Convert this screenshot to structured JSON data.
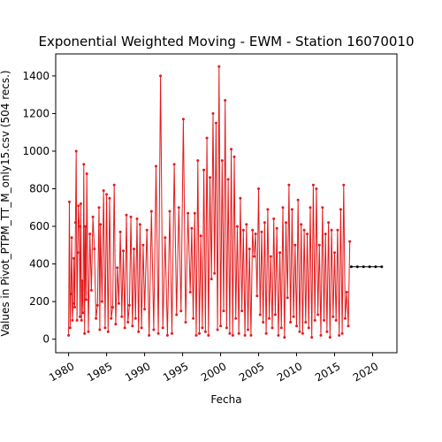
{
  "chart_data": {
    "type": "line",
    "title": "Exponential Weighted Moving - EWM - Station 16070010",
    "xlabel": "Fecha",
    "ylabel": "Values in Pivot_PTPM_TT_M_only15.csv (504 recs.)",
    "xlim": [
      1978.3,
      2023.2
    ],
    "ylim": [
      -72,
      1517
    ],
    "x_ticks": [
      1980,
      1985,
      1990,
      1995,
      2000,
      2005,
      2010,
      2015,
      2020
    ],
    "x_tick_labels": [
      "1980",
      "1985",
      "1990",
      "1995",
      "2000",
      "2005",
      "2010",
      "2015",
      "2020"
    ],
    "y_ticks": [
      0,
      200,
      400,
      600,
      800,
      1000,
      1200,
      1400
    ],
    "y_tick_labels": [
      "0",
      "200",
      "400",
      "600",
      "800",
      "1000",
      "1200",
      "1400"
    ],
    "grid": false,
    "colors": {
      "ewm": "#e31a1c",
      "tail": "#000000"
    },
    "series": [
      {
        "color": "#e31a1c",
        "x": [
          1980.0,
          1980.1,
          1980.2,
          1980.3,
          1980.4,
          1980.5,
          1980.6,
          1980.7,
          1980.8,
          1980.9,
          1981.0,
          1981.1,
          1981.2,
          1981.3,
          1981.4,
          1981.5,
          1981.6,
          1981.7,
          1981.8,
          1981.9,
          1982.0,
          1982.1,
          1982.2,
          1982.3,
          1982.4,
          1982.6,
          1982.8,
          1983.0,
          1983.2,
          1983.4,
          1983.6,
          1983.8,
          1984.0,
          1984.1,
          1984.2,
          1984.4,
          1984.6,
          1984.8,
          1985.0,
          1985.2,
          1985.4,
          1985.6,
          1985.8,
          1986.0,
          1986.2,
          1986.4,
          1986.6,
          1986.8,
          1987.0,
          1987.2,
          1987.4,
          1987.6,
          1987.8,
          1988.0,
          1988.2,
          1988.4,
          1988.6,
          1988.8,
          1989.0,
          1989.2,
          1989.4,
          1989.6,
          1989.8,
          1990.0,
          1990.3,
          1990.6,
          1990.9,
          1991.2,
          1991.5,
          1991.8,
          1992.1,
          1992.4,
          1992.7,
          1993.0,
          1993.3,
          1993.6,
          1993.9,
          1994.2,
          1994.5,
          1994.8,
          1995.1,
          1995.4,
          1995.7,
          1996.0,
          1996.2,
          1996.4,
          1996.6,
          1996.8,
          1997.0,
          1997.2,
          1997.4,
          1997.6,
          1997.8,
          1998.0,
          1998.2,
          1998.4,
          1998.6,
          1998.8,
          1999.0,
          1999.2,
          1999.4,
          1999.6,
          1999.8,
          2000.0,
          2000.2,
          2000.4,
          2000.6,
          2000.8,
          2001.0,
          2001.2,
          2001.4,
          2001.6,
          2001.8,
          2002.0,
          2002.2,
          2002.4,
          2002.6,
          2002.8,
          2003.0,
          2003.2,
          2003.4,
          2003.6,
          2003.8,
          2004.0,
          2004.2,
          2004.4,
          2004.6,
          2004.8,
          2005.0,
          2005.2,
          2005.4,
          2005.6,
          2005.8,
          2006.0,
          2006.2,
          2006.4,
          2006.6,
          2006.8,
          2007.0,
          2007.2,
          2007.4,
          2007.6,
          2007.8,
          2008.0,
          2008.2,
          2008.4,
          2008.6,
          2008.8,
          2009.0,
          2009.2,
          2009.4,
          2009.6,
          2009.8,
          2010.0,
          2010.2,
          2010.4,
          2010.6,
          2010.8,
          2011.0,
          2011.2,
          2011.4,
          2011.6,
          2011.8,
          2012.0,
          2012.2,
          2012.4,
          2012.6,
          2012.8,
          2013.0,
          2013.2,
          2013.4,
          2013.6,
          2013.8,
          2014.0,
          2014.2,
          2014.4,
          2014.6,
          2014.8,
          2015.0,
          2015.2,
          2015.4,
          2015.6,
          2015.8,
          2016.0,
          2016.2,
          2016.4,
          2016.6,
          2016.8,
          2017.0
        ],
        "y": [
          20,
          730,
          60,
          240,
          540,
          100,
          190,
          430,
          170,
          620,
          1000,
          100,
          460,
          710,
          600,
          120,
          720,
          100,
          310,
          140,
          930,
          30,
          600,
          210,
          880,
          40,
          560,
          260,
          650,
          480,
          110,
          180,
          700,
          50,
          610,
          200,
          790,
          60,
          770,
          40,
          750,
          110,
          170,
          820,
          80,
          380,
          190,
          570,
          120,
          470,
          60,
          660,
          90,
          180,
          650,
          70,
          480,
          110,
          640,
          40,
          610,
          60,
          500,
          160,
          580,
          20,
          680,
          50,
          920,
          30,
          1400,
          60,
          540,
          20,
          680,
          30,
          930,
          130,
          700,
          150,
          1170,
          90,
          670,
          250,
          590,
          110,
          670,
          20,
          950,
          30,
          550,
          60,
          900,
          40,
          1070,
          20,
          860,
          320,
          1200,
          350,
          1150,
          50,
          1450,
          70,
          950,
          150,
          1270,
          60,
          850,
          30,
          1010,
          20,
          970,
          110,
          600,
          30,
          750,
          150,
          580,
          20,
          610,
          50,
          480,
          20,
          580,
          440,
          560,
          230,
          800,
          130,
          570,
          90,
          620,
          30,
          690,
          110,
          440,
          60,
          640,
          130,
          590,
          20,
          460,
          60,
          700,
          10,
          620,
          220,
          820,
          90,
          690,
          120,
          500,
          70,
          740,
          40,
          610,
          30,
          580,
          90,
          560,
          60,
          700,
          10,
          820,
          100,
          800,
          130,
          500,
          20,
          700,
          100,
          560,
          40,
          620,
          10,
          580,
          120,
          460,
          100,
          580,
          20,
          690,
          30,
          820,
          110,
          250,
          70,
          520
        ]
      },
      {
        "color": "#000000",
        "x": [
          2017.2,
          2018.0,
          2018.8,
          2019.6,
          2020.4,
          2021.2
        ],
        "y": [
          385,
          385,
          385,
          385,
          385,
          385
        ]
      }
    ]
  }
}
